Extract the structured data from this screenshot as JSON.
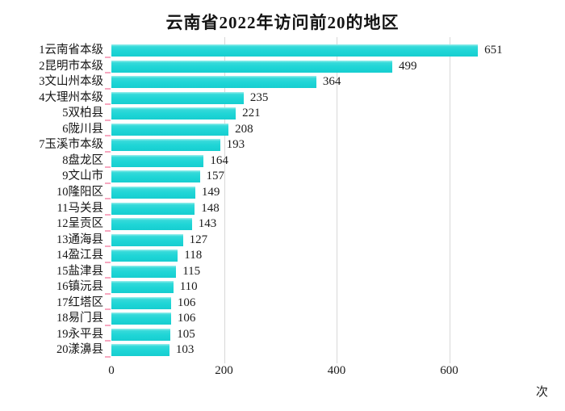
{
  "title": "云南省2022年访问前20的地区",
  "chart_data": {
    "type": "bar",
    "orientation": "horizontal",
    "title": "云南省2022年访问前20的地区",
    "xlabel": "次",
    "ylabel": "",
    "categories": [
      "1云南省本级",
      "2昆明市本级",
      "3文山州本级",
      "4大理州本级",
      "5双柏县",
      "6陇川县",
      "7玉溪市本级",
      "8盘龙区",
      "9文山市",
      "10隆阳区",
      "11马关县",
      "12呈贡区",
      "13通海县",
      "14盈江县",
      "15盐津县",
      "16镇沅县",
      "17红塔区",
      "18易门县",
      "19永平县",
      "20漾濞县"
    ],
    "values": [
      651,
      499,
      364,
      235,
      221,
      208,
      193,
      164,
      157,
      149,
      148,
      143,
      127,
      118,
      115,
      110,
      106,
      106,
      105,
      103
    ],
    "xticks": [
      0,
      200,
      400,
      600
    ],
    "xlim": [
      0,
      805
    ],
    "grid": true,
    "legend": false,
    "value_labels": true,
    "bars_sorted_descending": true
  },
  "colors": {
    "background": "#ffffff",
    "bar": "#1ed5d6",
    "bar_highlight": "#9defec",
    "grid": "#d8d8d8",
    "y_tick": "#f7a8c0",
    "text": "#1b1b1b"
  }
}
